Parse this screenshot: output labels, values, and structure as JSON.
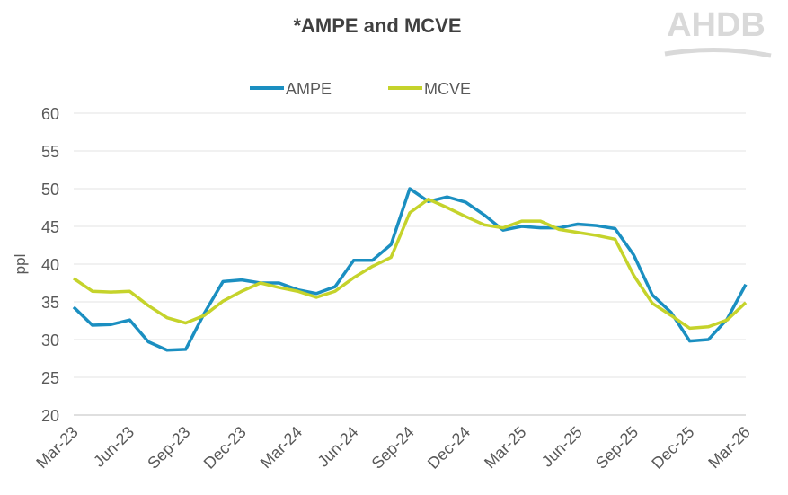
{
  "chart_data": {
    "type": "line",
    "title": "*AMPE and MCVE",
    "logo": "AHDB",
    "y_label": "ppl",
    "categories": [
      "Mar-23",
      null,
      null,
      "Jun-23",
      null,
      null,
      "Sep-23",
      null,
      null,
      "Dec-23",
      null,
      null,
      "Mar-24",
      null,
      null,
      "Jun-24",
      null,
      null,
      "Sep-24",
      null,
      null,
      "Dec-24",
      null,
      null,
      "Mar-25",
      null,
      null,
      "Jun-25",
      null,
      null,
      "Sep-25",
      null,
      null,
      "Dec-25",
      null,
      null,
      "Mar-26"
    ],
    "series": [
      {
        "name": "AMPE",
        "color": "#1b8fc1",
        "values": [
          34.3,
          31.9,
          32.0,
          32.6,
          29.7,
          28.6,
          28.7,
          33.5,
          37.7,
          37.9,
          37.5,
          37.5,
          36.6,
          36.1,
          37.0,
          40.5,
          40.5,
          42.6,
          50.0,
          48.3,
          48.9,
          48.2,
          46.5,
          44.5,
          45.0,
          44.8,
          44.8,
          45.3,
          45.1,
          44.7,
          41.2,
          35.9,
          33.6,
          29.8,
          30.0,
          32.7,
          37.3
        ]
      },
      {
        "name": "MCVE",
        "color": "#c5d32b",
        "values": [
          38.1,
          36.4,
          36.3,
          36.4,
          34.5,
          32.9,
          32.2,
          33.2,
          35.1,
          36.4,
          37.5,
          36.9,
          36.4,
          35.6,
          36.4,
          38.2,
          39.7,
          40.9,
          46.8,
          48.6,
          47.5,
          46.3,
          45.2,
          44.8,
          45.7,
          45.7,
          44.6,
          44.2,
          43.8,
          43.3,
          38.5,
          34.8,
          33.2,
          31.5,
          31.7,
          32.6,
          34.9
        ]
      }
    ],
    "ylim": [
      20,
      60
    ],
    "yticks": [
      20,
      25,
      30,
      35,
      40,
      45,
      50,
      55,
      60
    ],
    "grid": true,
    "legend": "top"
  }
}
